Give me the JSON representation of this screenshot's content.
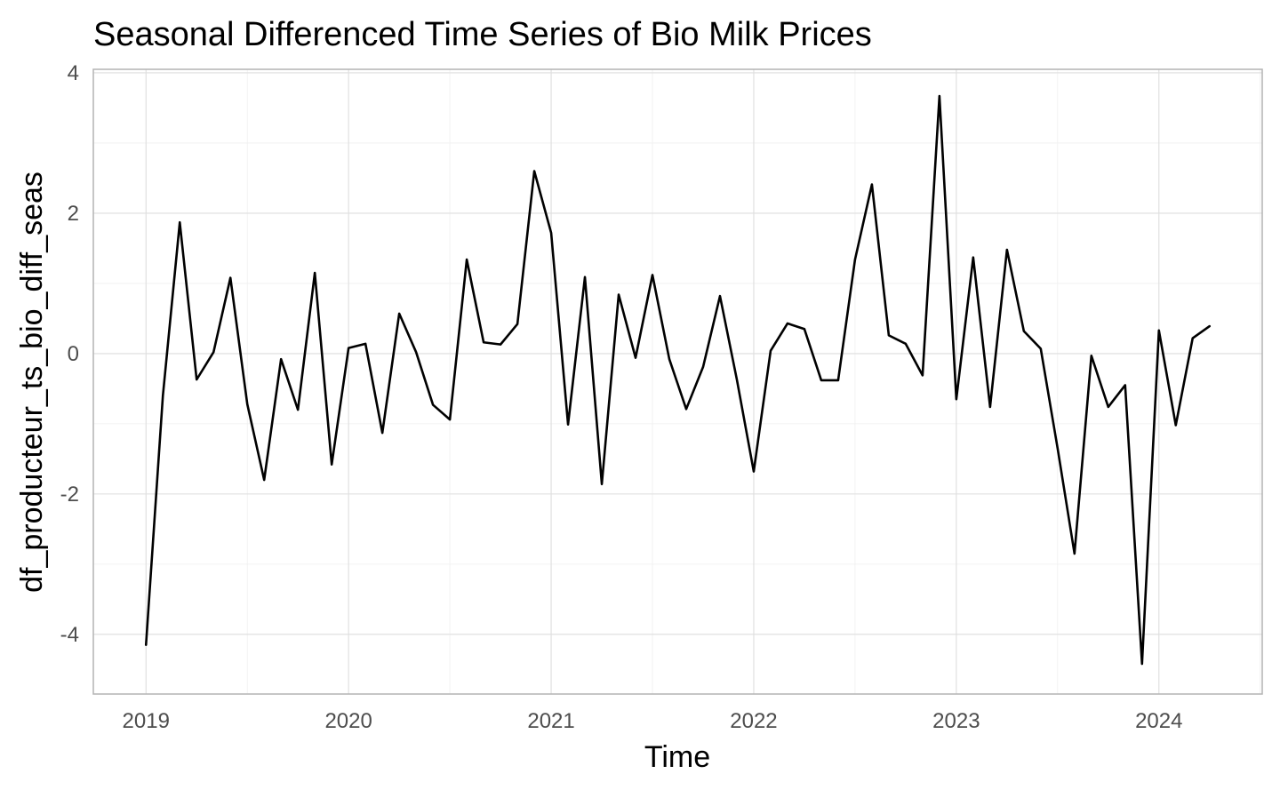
{
  "chart_data": {
    "type": "line",
    "title": "Seasonal Differenced Time Series of Bio Milk Prices",
    "xlabel": "Time",
    "ylabel": "df_producteur_ts_bio_diff_seas",
    "xlim": [
      2018.74,
      2024.51
    ],
    "ylim": [
      -4.85,
      4.05
    ],
    "x_ticks": [
      2019,
      2020,
      2021,
      2022,
      2023,
      2024
    ],
    "x_tick_labels": [
      "2019",
      "2020",
      "2021",
      "2022",
      "2023",
      "2024"
    ],
    "y_ticks": [
      -4,
      -2,
      0,
      2,
      4
    ],
    "y_tick_labels": [
      "-4",
      "-2",
      "0",
      "2",
      "4"
    ],
    "grid": true,
    "legend": "none",
    "line_color": "#000000",
    "series": [
      {
        "x_start": 2019.0,
        "x_step": 0.0833333,
        "values": [
          -4.15,
          -0.6,
          1.87,
          -0.37,
          0.02,
          1.08,
          -0.72,
          -1.8,
          -0.08,
          -0.8,
          1.15,
          -1.58,
          0.08,
          0.14,
          -1.13,
          0.57,
          0.02,
          -0.73,
          -0.94,
          1.34,
          0.16,
          0.13,
          0.42,
          2.6,
          1.72,
          -1.01,
          1.09,
          -1.86,
          0.84,
          -0.06,
          1.12,
          -0.08,
          -0.79,
          -0.19,
          0.82,
          -0.37,
          -1.68,
          0.04,
          0.43,
          0.35,
          -0.38,
          -0.38,
          1.34,
          2.41,
          0.26,
          0.14,
          -0.31,
          3.67,
          -0.65,
          1.37,
          -0.76,
          1.48,
          0.32,
          0.07,
          -1.35,
          -2.85,
          -0.03,
          -0.76,
          -0.45,
          -4.42,
          0.33,
          -1.02,
          0.22,
          0.39
        ]
      }
    ]
  }
}
